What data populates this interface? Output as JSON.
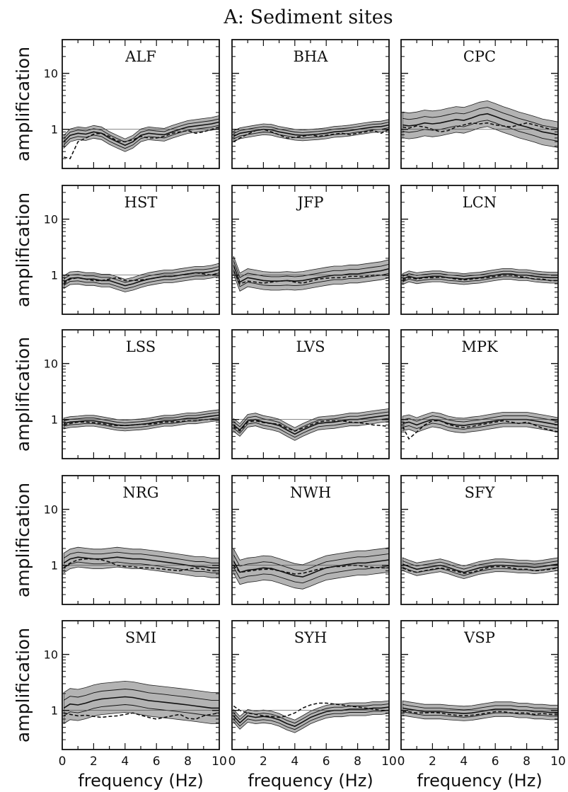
{
  "chart_data": {
    "type": "line",
    "title": "A: Sediment sites",
    "xlabel": "frequency (Hz)",
    "ylabel": "amplification",
    "xlim": [
      0,
      10
    ],
    "ylim": [
      0.2,
      40
    ],
    "yscale": "log",
    "x_ticks": [
      0,
      2,
      4,
      6,
      8,
      10
    ],
    "y_tick_labels": [
      "1",
      "10"
    ],
    "grid": false,
    "legend": "none",
    "colors": {
      "band": "#9a9a9a",
      "line": "#111111"
    },
    "x": [
      0.1,
      0.5,
      1,
      1.5,
      2,
      2.5,
      3,
      3.5,
      4,
      4.5,
      5,
      5.5,
      6,
      6.5,
      7,
      7.5,
      8,
      8.5,
      9,
      9.5,
      10
    ],
    "panels": [
      {
        "site": "ALF",
        "mean": [
          0.6,
          0.78,
          0.85,
          0.82,
          0.9,
          0.85,
          0.7,
          0.6,
          0.52,
          0.6,
          0.78,
          0.85,
          0.82,
          0.8,
          0.9,
          1.0,
          1.1,
          1.15,
          1.2,
          1.25,
          1.35
        ],
        "band_factor": 1.3,
        "dashed": [
          0.32,
          0.3,
          0.6,
          0.7,
          0.82,
          0.85,
          0.75,
          0.62,
          0.6,
          0.65,
          0.75,
          0.7,
          0.7,
          0.75,
          0.85,
          0.9,
          0.95,
          0.85,
          0.9,
          1.0,
          1.1
        ]
      },
      {
        "site": "BHA",
        "mean": [
          0.75,
          0.85,
          0.9,
          0.95,
          1.0,
          0.98,
          0.9,
          0.85,
          0.8,
          0.78,
          0.8,
          0.82,
          0.85,
          0.9,
          0.92,
          0.95,
          1.0,
          1.05,
          1.1,
          1.12,
          1.2
        ],
        "band_factor": 1.25,
        "dashed": [
          0.6,
          0.7,
          0.82,
          0.95,
          1.0,
          0.9,
          0.8,
          0.7,
          0.72,
          0.75,
          0.8,
          0.75,
          0.78,
          0.82,
          0.85,
          0.8,
          0.85,
          0.9,
          0.95,
          0.85,
          1.0
        ]
      },
      {
        "site": "CPC",
        "mean": [
          1.2,
          1.15,
          1.2,
          1.3,
          1.25,
          1.3,
          1.4,
          1.5,
          1.45,
          1.6,
          1.8,
          1.9,
          1.7,
          1.5,
          1.35,
          1.2,
          1.1,
          1.0,
          0.9,
          0.85,
          0.8
        ],
        "band_factor": 1.7,
        "dashed": [
          1.1,
          1.05,
          1.15,
          1.1,
          1.0,
          0.9,
          0.95,
          1.1,
          1.2,
          1.3,
          1.25,
          1.3,
          1.2,
          1.15,
          1.1,
          1.2,
          1.3,
          1.2,
          1.1,
          1.0,
          1.0
        ]
      },
      {
        "site": "HST",
        "mean": [
          0.75,
          0.88,
          0.9,
          0.85,
          0.85,
          0.8,
          0.8,
          0.72,
          0.65,
          0.7,
          0.78,
          0.85,
          0.9,
          0.95,
          0.95,
          1.0,
          1.05,
          1.1,
          1.1,
          1.15,
          1.25
        ],
        "band_factor": 1.3,
        "dashed": [
          0.7,
          0.85,
          0.9,
          0.85,
          0.8,
          0.8,
          0.85,
          0.9,
          0.8,
          0.8,
          0.82,
          0.85,
          0.9,
          0.95,
          0.95,
          1.0,
          1.05,
          1.1,
          1.05,
          1.0,
          1.1
        ]
      },
      {
        "site": "JFP",
        "mean": [
          1.5,
          0.75,
          0.9,
          0.85,
          0.8,
          0.78,
          0.78,
          0.8,
          0.78,
          0.8,
          0.85,
          0.9,
          0.95,
          1.0,
          1.0,
          1.05,
          1.05,
          1.1,
          1.15,
          1.2,
          1.3
        ],
        "band_factor": 1.45,
        "dashed": [
          1.2,
          0.7,
          0.78,
          0.75,
          0.72,
          0.75,
          0.78,
          0.8,
          0.75,
          0.72,
          0.78,
          0.85,
          0.88,
          0.9,
          0.9,
          0.95,
          0.95,
          0.95,
          1.0,
          1.0,
          1.0
        ]
      },
      {
        "site": "LCN",
        "mean": [
          0.85,
          0.95,
          0.88,
          0.92,
          0.95,
          0.95,
          0.9,
          0.88,
          0.85,
          0.88,
          0.9,
          0.95,
          1.0,
          1.05,
          1.05,
          1.0,
          1.0,
          0.95,
          0.92,
          0.9,
          0.9
        ],
        "band_factor": 1.25,
        "dashed": [
          0.8,
          0.9,
          0.85,
          0.9,
          0.9,
          0.92,
          0.9,
          0.85,
          0.82,
          0.85,
          0.88,
          0.9,
          0.95,
          1.0,
          1.0,
          0.95,
          0.9,
          0.85,
          0.85,
          0.8,
          0.8
        ]
      },
      {
        "site": "LSS",
        "mean": [
          0.85,
          0.9,
          0.92,
          0.95,
          0.95,
          0.9,
          0.85,
          0.8,
          0.78,
          0.8,
          0.82,
          0.85,
          0.9,
          0.95,
          0.95,
          1.0,
          1.05,
          1.05,
          1.1,
          1.15,
          1.2
        ],
        "band_factor": 1.25,
        "dashed": [
          0.8,
          0.85,
          0.9,
          0.9,
          0.88,
          0.85,
          0.8,
          0.78,
          0.78,
          0.8,
          0.82,
          0.82,
          0.85,
          0.9,
          0.9,
          0.92,
          0.95,
          0.95,
          1.0,
          1.0,
          1.0
        ]
      },
      {
        "site": "LVS",
        "mean": [
          0.8,
          0.65,
          0.95,
          1.0,
          0.9,
          0.85,
          0.78,
          0.65,
          0.55,
          0.65,
          0.75,
          0.85,
          0.88,
          0.9,
          0.95,
          1.0,
          1.0,
          1.05,
          1.1,
          1.15,
          1.2
        ],
        "band_factor": 1.3,
        "dashed": [
          0.75,
          0.62,
          0.9,
          0.95,
          0.88,
          0.85,
          0.82,
          0.7,
          0.62,
          0.7,
          0.8,
          0.9,
          0.95,
          0.95,
          0.95,
          0.9,
          0.88,
          0.85,
          0.8,
          0.78,
          0.75
        ]
      },
      {
        "site": "MPK",
        "mean": [
          0.85,
          0.9,
          0.8,
          0.9,
          1.0,
          0.95,
          0.85,
          0.8,
          0.78,
          0.82,
          0.85,
          0.9,
          0.95,
          1.0,
          1.0,
          1.0,
          1.0,
          0.95,
          0.9,
          0.85,
          0.8
        ],
        "band_factor": 1.35,
        "dashed": [
          0.75,
          0.45,
          0.6,
          0.8,
          0.95,
          0.95,
          0.82,
          0.75,
          0.72,
          0.75,
          0.8,
          0.85,
          0.9,
          0.95,
          0.9,
          0.85,
          0.9,
          0.8,
          0.7,
          0.65,
          0.6
        ]
      },
      {
        "site": "NRG",
        "mean": [
          1.1,
          1.3,
          1.4,
          1.35,
          1.3,
          1.3,
          1.35,
          1.4,
          1.35,
          1.3,
          1.3,
          1.25,
          1.2,
          1.15,
          1.1,
          1.05,
          1.0,
          0.95,
          0.95,
          0.9,
          0.9
        ],
        "band_factor": 1.5,
        "dashed": [
          0.9,
          1.1,
          1.25,
          1.3,
          1.3,
          1.25,
          1.15,
          1.0,
          0.95,
          0.95,
          0.9,
          0.9,
          0.88,
          0.85,
          0.82,
          0.8,
          0.85,
          0.9,
          0.85,
          0.8,
          0.8
        ]
      },
      {
        "site": "NWH",
        "mean": [
          1.2,
          0.75,
          0.82,
          0.85,
          0.9,
          0.88,
          0.8,
          0.72,
          0.65,
          0.62,
          0.7,
          0.8,
          0.9,
          0.95,
          1.0,
          1.05,
          1.1,
          1.1,
          1.15,
          1.2,
          1.25
        ],
        "band_factor": 1.65,
        "dashed": [
          1.0,
          0.75,
          0.78,
          0.82,
          0.85,
          0.85,
          0.8,
          0.75,
          0.7,
          0.72,
          0.78,
          0.85,
          0.9,
          0.95,
          0.95,
          1.0,
          1.0,
          0.95,
          0.92,
          0.9,
          0.9
        ]
      },
      {
        "site": "SFY",
        "mean": [
          1.05,
          0.95,
          0.85,
          0.9,
          0.95,
          1.0,
          0.92,
          0.82,
          0.75,
          0.82,
          0.9,
          0.95,
          1.0,
          1.0,
          0.98,
          0.95,
          0.95,
          0.92,
          0.95,
          1.0,
          1.05
        ],
        "band_factor": 1.3,
        "dashed": [
          0.9,
          0.8,
          0.75,
          0.8,
          0.85,
          0.9,
          0.85,
          0.78,
          0.72,
          0.75,
          0.82,
          0.9,
          0.95,
          0.95,
          0.9,
          0.85,
          0.85,
          0.8,
          0.82,
          0.85,
          0.9
        ]
      },
      {
        "site": "SMI",
        "mean": [
          1.1,
          1.3,
          1.25,
          1.35,
          1.5,
          1.6,
          1.65,
          1.7,
          1.75,
          1.7,
          1.6,
          1.5,
          1.45,
          1.4,
          1.35,
          1.3,
          1.25,
          1.2,
          1.15,
          1.1,
          1.1
        ],
        "band_factor": 1.9,
        "dashed": [
          0.9,
          0.85,
          0.8,
          0.82,
          0.78,
          0.75,
          0.78,
          0.8,
          0.85,
          0.9,
          0.82,
          0.75,
          0.7,
          0.75,
          0.8,
          0.85,
          0.72,
          0.7,
          0.8,
          0.85,
          0.9
        ]
      },
      {
        "site": "SYH",
        "mean": [
          0.8,
          0.6,
          0.8,
          0.75,
          0.78,
          0.75,
          0.68,
          0.58,
          0.52,
          0.62,
          0.75,
          0.85,
          0.95,
          1.0,
          1.0,
          1.05,
          1.05,
          1.05,
          1.1,
          1.1,
          1.15
        ],
        "band_factor": 1.3,
        "dashed": [
          1.2,
          1.0,
          0.9,
          0.85,
          0.8,
          0.78,
          0.75,
          0.8,
          0.9,
          1.1,
          1.25,
          1.35,
          1.35,
          1.3,
          1.25,
          1.2,
          1.15,
          1.1,
          1.05,
          1.0,
          1.0
        ]
      },
      {
        "site": "VSP",
        "mean": [
          1.1,
          1.05,
          1.0,
          0.95,
          0.95,
          0.95,
          0.92,
          0.9,
          0.88,
          0.9,
          0.95,
          1.0,
          1.05,
          1.05,
          1.05,
          1.0,
          1.0,
          0.95,
          0.95,
          0.92,
          0.92
        ],
        "band_factor": 1.35,
        "dashed": [
          0.95,
          0.95,
          0.9,
          0.9,
          0.92,
          0.9,
          0.85,
          0.82,
          0.8,
          0.82,
          0.85,
          0.9,
          0.95,
          0.95,
          0.9,
          0.9,
          0.9,
          0.85,
          0.88,
          0.85,
          0.85
        ]
      }
    ]
  }
}
